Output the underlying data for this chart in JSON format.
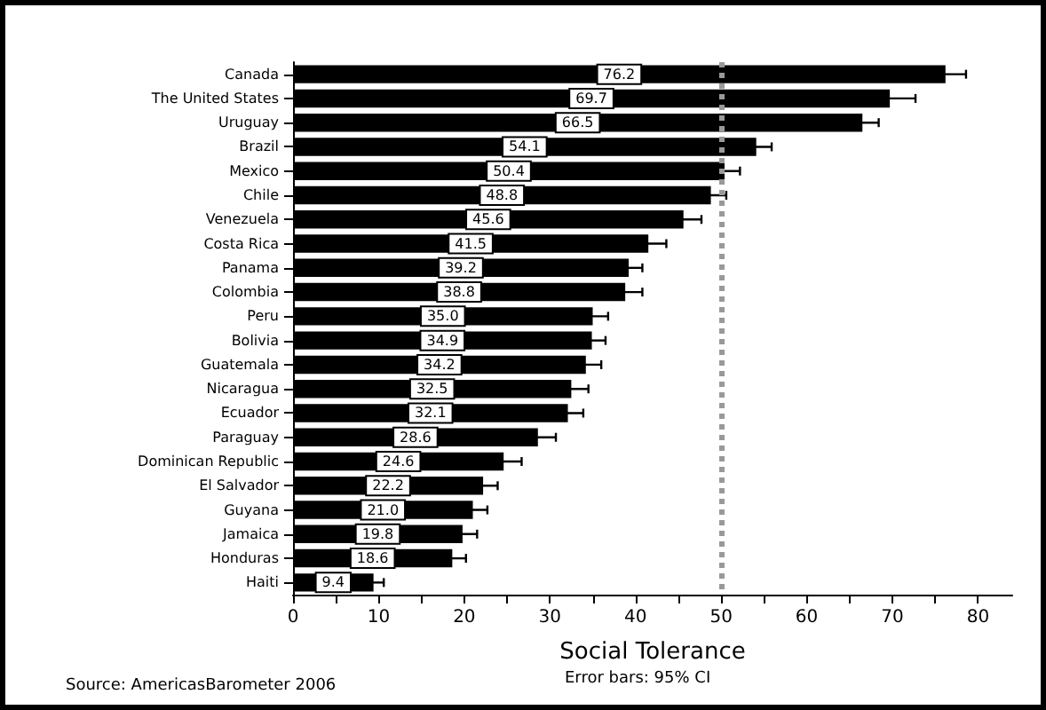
{
  "chart_data": {
    "type": "bar",
    "orientation": "horizontal",
    "xlabel": "Social Tolerance",
    "categories": [
      "Canada",
      "The United States",
      "Uruguay",
      "Brazil",
      "Mexico",
      "Chile",
      "Venezuela",
      "Costa Rica",
      "Panama",
      "Colombia",
      "Peru",
      "Bolivia",
      "Guatemala",
      "Nicaragua",
      "Ecuador",
      "Paraguay",
      "Dominican Republic",
      "El Salvador",
      "Guyana",
      "Jamaica",
      "Honduras",
      "Haiti"
    ],
    "values": [
      76.2,
      69.7,
      66.5,
      54.1,
      50.4,
      48.8,
      45.6,
      41.5,
      39.2,
      38.8,
      35.0,
      34.9,
      34.2,
      32.5,
      32.1,
      28.6,
      24.6,
      22.2,
      21.0,
      19.8,
      18.6,
      9.4
    ],
    "errors": [
      2.4,
      3.0,
      1.9,
      1.8,
      1.8,
      1.8,
      2.1,
      2.1,
      1.6,
      2.0,
      1.8,
      1.6,
      1.8,
      2.0,
      1.8,
      2.1,
      2.1,
      1.7,
      1.7,
      1.7,
      1.6,
      1.2
    ],
    "value_labels": [
      "76.2",
      "69.7",
      "66.5",
      "54.1",
      "50.4",
      "48.8",
      "45.6",
      "41.5",
      "39.2",
      "38.8",
      "35.0",
      "34.9",
      "34.2",
      "32.5",
      "32.1",
      "28.6",
      "24.6",
      "22.2",
      "21.0",
      "19.8",
      "18.6",
      "9.4"
    ],
    "color": "#000000",
    "grid": false,
    "xlim": [
      0,
      84
    ],
    "xticks": [
      0,
      {
        "value": 5,
        "label": null
      },
      10,
      {
        "value": 15,
        "label": null
      },
      20,
      {
        "value": 25,
        "label": null
      },
      30,
      {
        "value": 35,
        "label": null
      },
      40,
      {
        "value": 45,
        "label": null
      },
      50,
      {
        "value": 55,
        "label": null
      },
      60,
      {
        "value": 65,
        "label": null
      },
      70,
      {
        "value": 75,
        "label": null
      },
      80
    ],
    "ref_lines": [
      {
        "axis": "x",
        "value": 50,
        "color": "#999999",
        "line_style": "dotted"
      }
    ],
    "annotations": [
      "Error bars: 95% CI",
      "Source: AmericasBarometer 2006"
    ]
  }
}
